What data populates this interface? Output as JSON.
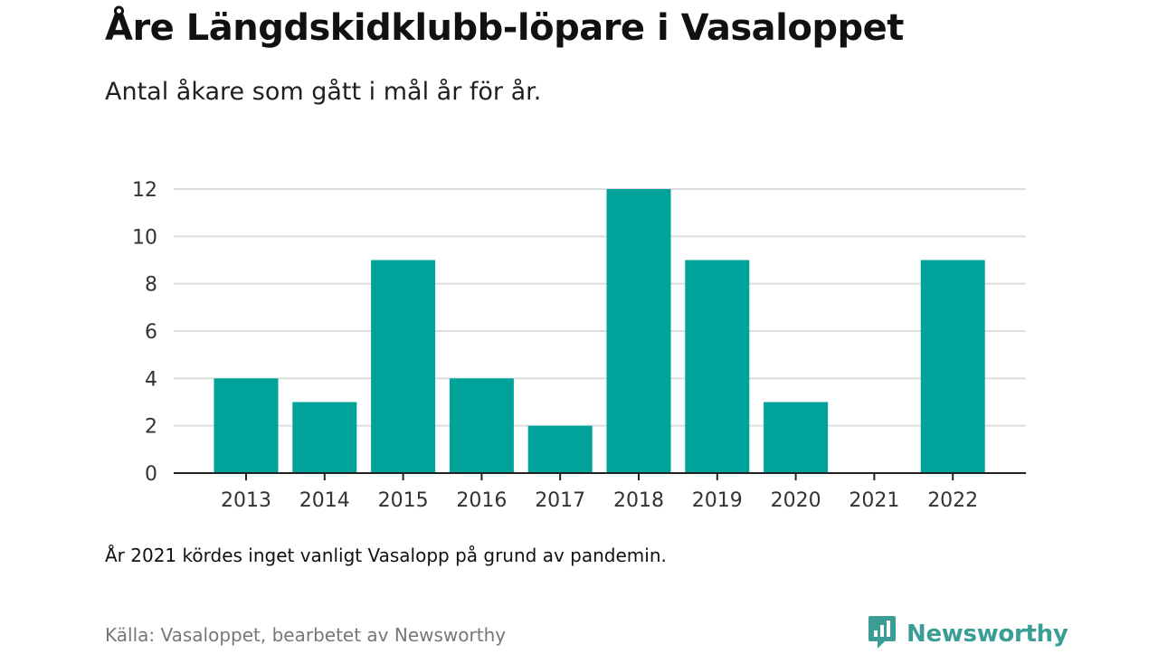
{
  "header": {
    "title": "Åre Längdskidklubb-löpare i Vasaloppet",
    "subtitle": "Antal åkare som gått i mål år för år."
  },
  "footer": {
    "note": "År 2021 kördes inget vanligt Vasalopp på grund av pandemin.",
    "source": "Källa: Vasaloppet, bearbetet av Newsworthy",
    "brand": "Newsworthy",
    "brand_icon": "newsworthy-logo-icon"
  },
  "colors": {
    "bar": "#00a39a",
    "grid": "#dddddd",
    "axis": "#222222",
    "brand": "#3a9e96"
  },
  "chart_data": {
    "type": "bar",
    "categories": [
      "2013",
      "2014",
      "2015",
      "2016",
      "2017",
      "2018",
      "2019",
      "2020",
      "2021",
      "2022"
    ],
    "values": [
      4,
      3,
      9,
      4,
      2,
      12,
      9,
      3,
      0,
      9
    ],
    "ylim": [
      0,
      12
    ],
    "yticks": [
      0,
      2,
      4,
      6,
      8,
      10,
      12
    ],
    "grid": true,
    "legend": "none"
  }
}
